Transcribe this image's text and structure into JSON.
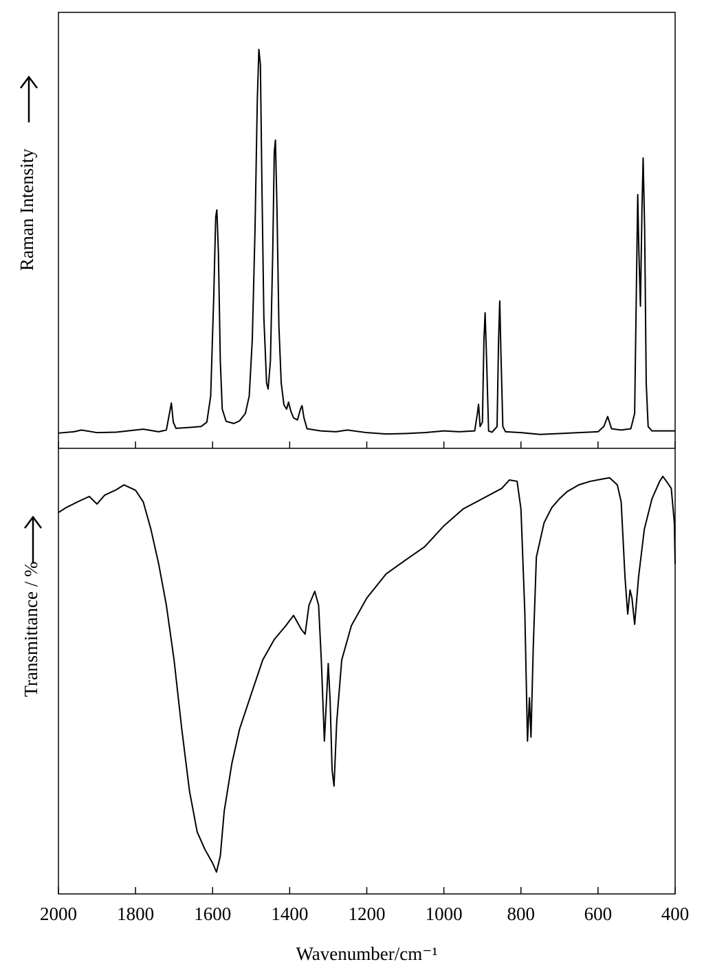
{
  "chart_data": [
    {
      "type": "line",
      "y_label": "Raman Intensity",
      "x": [
        2000,
        1960,
        1940,
        1900,
        1850,
        1780,
        1740,
        1720,
        1712,
        1707,
        1702,
        1695,
        1660,
        1630,
        1615,
        1605,
        1597,
        1592,
        1589,
        1585,
        1580,
        1575,
        1565,
        1545,
        1530,
        1515,
        1505,
        1497,
        1490,
        1484,
        1480,
        1476,
        1472,
        1467,
        1460,
        1456,
        1450,
        1444,
        1440,
        1437,
        1433,
        1428,
        1422,
        1415,
        1408,
        1403,
        1397,
        1390,
        1380,
        1372,
        1368,
        1363,
        1355,
        1320,
        1280,
        1250,
        1200,
        1150,
        1100,
        1050,
        1000,
        960,
        920,
        913,
        910,
        906,
        900,
        896,
        893,
        889,
        884,
        875,
        862,
        858,
        855,
        852,
        847,
        840,
        800,
        750,
        700,
        650,
        600,
        585,
        575,
        565,
        540,
        515,
        505,
        500,
        497,
        494,
        490,
        486,
        483,
        479,
        475,
        470,
        460,
        430,
        400
      ],
      "series": [
        {
          "color": "#000000",
          "values": [
            3.5,
            3.8,
            4.2,
            3.6,
            3.7,
            4.4,
            3.8,
            4.2,
            8,
            10.4,
            6,
            4.6,
            4.8,
            5,
            6,
            12,
            35,
            53,
            54.7,
            45,
            20,
            9,
            6.2,
            5.7,
            6.3,
            8,
            12,
            25,
            50,
            80,
            91.5,
            88,
            60,
            30,
            15,
            13.6,
            20,
            45,
            68,
            70.7,
            55,
            28,
            15,
            10,
            9,
            10.6,
            8.5,
            7,
            6.5,
            9,
            9.8,
            7,
            4.5,
            4,
            3.8,
            4.2,
            3.6,
            3.3,
            3.4,
            3.6,
            4,
            3.8,
            4,
            8,
            10.1,
            5,
            6,
            25,
            31.1,
            20,
            4,
            3.7,
            5,
            25,
            33.8,
            22,
            5,
            3.8,
            3.6,
            3.2,
            3.4,
            3.6,
            3.8,
            5,
            7.3,
            4.5,
            4.2,
            4.5,
            8,
            40,
            58.2,
            45,
            32.6,
            55,
            66.6,
            50,
            15,
            5,
            4,
            4,
            4
          ]
        }
      ],
      "xlim": [
        2000,
        400
      ],
      "xticks": [
        2000,
        1800,
        1600,
        1400,
        1200,
        1000,
        800,
        600,
        400
      ],
      "ylim": [
        0,
        100
      ]
    },
    {
      "type": "line",
      "y_label": "Transmittance / %",
      "x_label": "Wavenumber/cm⁻¹",
      "x": [
        2000,
        1980,
        1950,
        1920,
        1900,
        1880,
        1850,
        1830,
        1800,
        1780,
        1760,
        1740,
        1720,
        1700,
        1680,
        1660,
        1640,
        1620,
        1600,
        1590,
        1580,
        1570,
        1550,
        1530,
        1500,
        1470,
        1440,
        1410,
        1390,
        1370,
        1360,
        1350,
        1335,
        1325,
        1318,
        1310,
        1303,
        1300,
        1295,
        1290,
        1285,
        1278,
        1265,
        1240,
        1200,
        1150,
        1100,
        1050,
        1000,
        950,
        900,
        850,
        830,
        810,
        800,
        790,
        783,
        778,
        774,
        768,
        760,
        740,
        720,
        700,
        680,
        650,
        620,
        590,
        570,
        550,
        540,
        530,
        523,
        517,
        512,
        505,
        495,
        480,
        460,
        440,
        432,
        420,
        410,
        402,
        400
      ],
      "series": [
        {
          "color": "#000000",
          "values": [
            85.6,
            86.7,
            88,
            89.2,
            87.5,
            89.5,
            90.7,
            91.8,
            90.6,
            88,
            81.8,
            74.1,
            64.8,
            52.5,
            37,
            23.1,
            13.9,
            10,
            6.9,
            4.9,
            8.5,
            18.5,
            29.3,
            37,
            44.8,
            52.5,
            57.1,
            60.2,
            62.5,
            59.4,
            58.3,
            64.8,
            67.9,
            64.8,
            52.5,
            34.3,
            46.3,
            51.7,
            43.2,
            27.8,
            24.2,
            38.6,
            52.5,
            60.2,
            66.4,
            71.8,
            74.9,
            77.9,
            82.6,
            86.4,
            88.7,
            91,
            92.9,
            92.6,
            86.4,
            63.3,
            34.3,
            44,
            35.2,
            55.6,
            75.6,
            83.3,
            86.7,
            88.7,
            90.3,
            91.8,
            92.6,
            93.1,
            93.4,
            91.8,
            88,
            71,
            62.8,
            68.2,
            66.4,
            60.5,
            71,
            81.8,
            88.7,
            92.6,
            93.7,
            92.3,
            91,
            83.3,
            74.1
          ]
        }
      ],
      "xlim": [
        2000,
        400
      ],
      "xticks": [
        2000,
        1800,
        1600,
        1400,
        1200,
        1000,
        800,
        600,
        400
      ],
      "ylim": [
        0,
        100
      ]
    }
  ]
}
